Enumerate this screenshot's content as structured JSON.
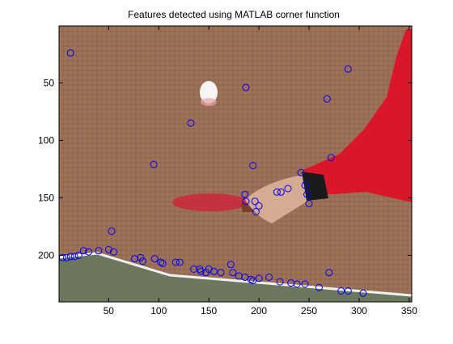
{
  "figure": {
    "title": "Features detected using MATLAB corner function"
  },
  "chart_data": {
    "type": "scatter",
    "title": "Features detected using MATLAB corner function",
    "xlabel": "",
    "ylabel": "",
    "xlim": [
      0.5,
      352.5
    ],
    "ylim": [
      0.5,
      240.5
    ],
    "y_reversed": true,
    "grid": false,
    "x_ticks": [
      50,
      100,
      150,
      200,
      250,
      300,
      350
    ],
    "y_ticks": [
      50,
      100,
      150,
      200
    ],
    "marker": "circle",
    "marker_color": "#0000ff",
    "background": "image",
    "points": [
      [
        12,
        24
      ],
      [
        187,
        54
      ],
      [
        289,
        38
      ],
      [
        268,
        64
      ],
      [
        132,
        85
      ],
      [
        95,
        121
      ],
      [
        194,
        122
      ],
      [
        242,
        128
      ],
      [
        272,
        115
      ],
      [
        229,
        142
      ],
      [
        218,
        145
      ],
      [
        222,
        145
      ],
      [
        246,
        139
      ],
      [
        186,
        147
      ],
      [
        187,
        153
      ],
      [
        196,
        153
      ],
      [
        200,
        157
      ],
      [
        197,
        162
      ],
      [
        248,
        147
      ],
      [
        250,
        155
      ],
      [
        53,
        179
      ],
      [
        4,
        202
      ],
      [
        8,
        202
      ],
      [
        12,
        201
      ],
      [
        16,
        201
      ],
      [
        20,
        200
      ],
      [
        25,
        196
      ],
      [
        30,
        197
      ],
      [
        40,
        196
      ],
      [
        50,
        195
      ],
      [
        55,
        197
      ],
      [
        76,
        203
      ],
      [
        82,
        202
      ],
      [
        84,
        205
      ],
      [
        96,
        203
      ],
      [
        102,
        206
      ],
      [
        104,
        207
      ],
      [
        117,
        206
      ],
      [
        121,
        206
      ],
      [
        135,
        212
      ],
      [
        141,
        212
      ],
      [
        142,
        214
      ],
      [
        147,
        215
      ],
      [
        150,
        212
      ],
      [
        155,
        214
      ],
      [
        162,
        215
      ],
      [
        172,
        208
      ],
      [
        174,
        215
      ],
      [
        180,
        218
      ],
      [
        186,
        219
      ],
      [
        192,
        221
      ],
      [
        194,
        222
      ],
      [
        200,
        220
      ],
      [
        210,
        219
      ],
      [
        221,
        223
      ],
      [
        232,
        224
      ],
      [
        238,
        225
      ],
      [
        246,
        225
      ],
      [
        260,
        228
      ],
      [
        270,
        215
      ],
      [
        282,
        231
      ],
      [
        289,
        231
      ],
      [
        304,
        233
      ]
    ]
  },
  "colors": {
    "marker": "#0000ff",
    "axis": "#000000",
    "wall": "#9a6f55",
    "table": "#6d7760",
    "paddle": "#c5313f",
    "sleeve": "#d9162a"
  }
}
